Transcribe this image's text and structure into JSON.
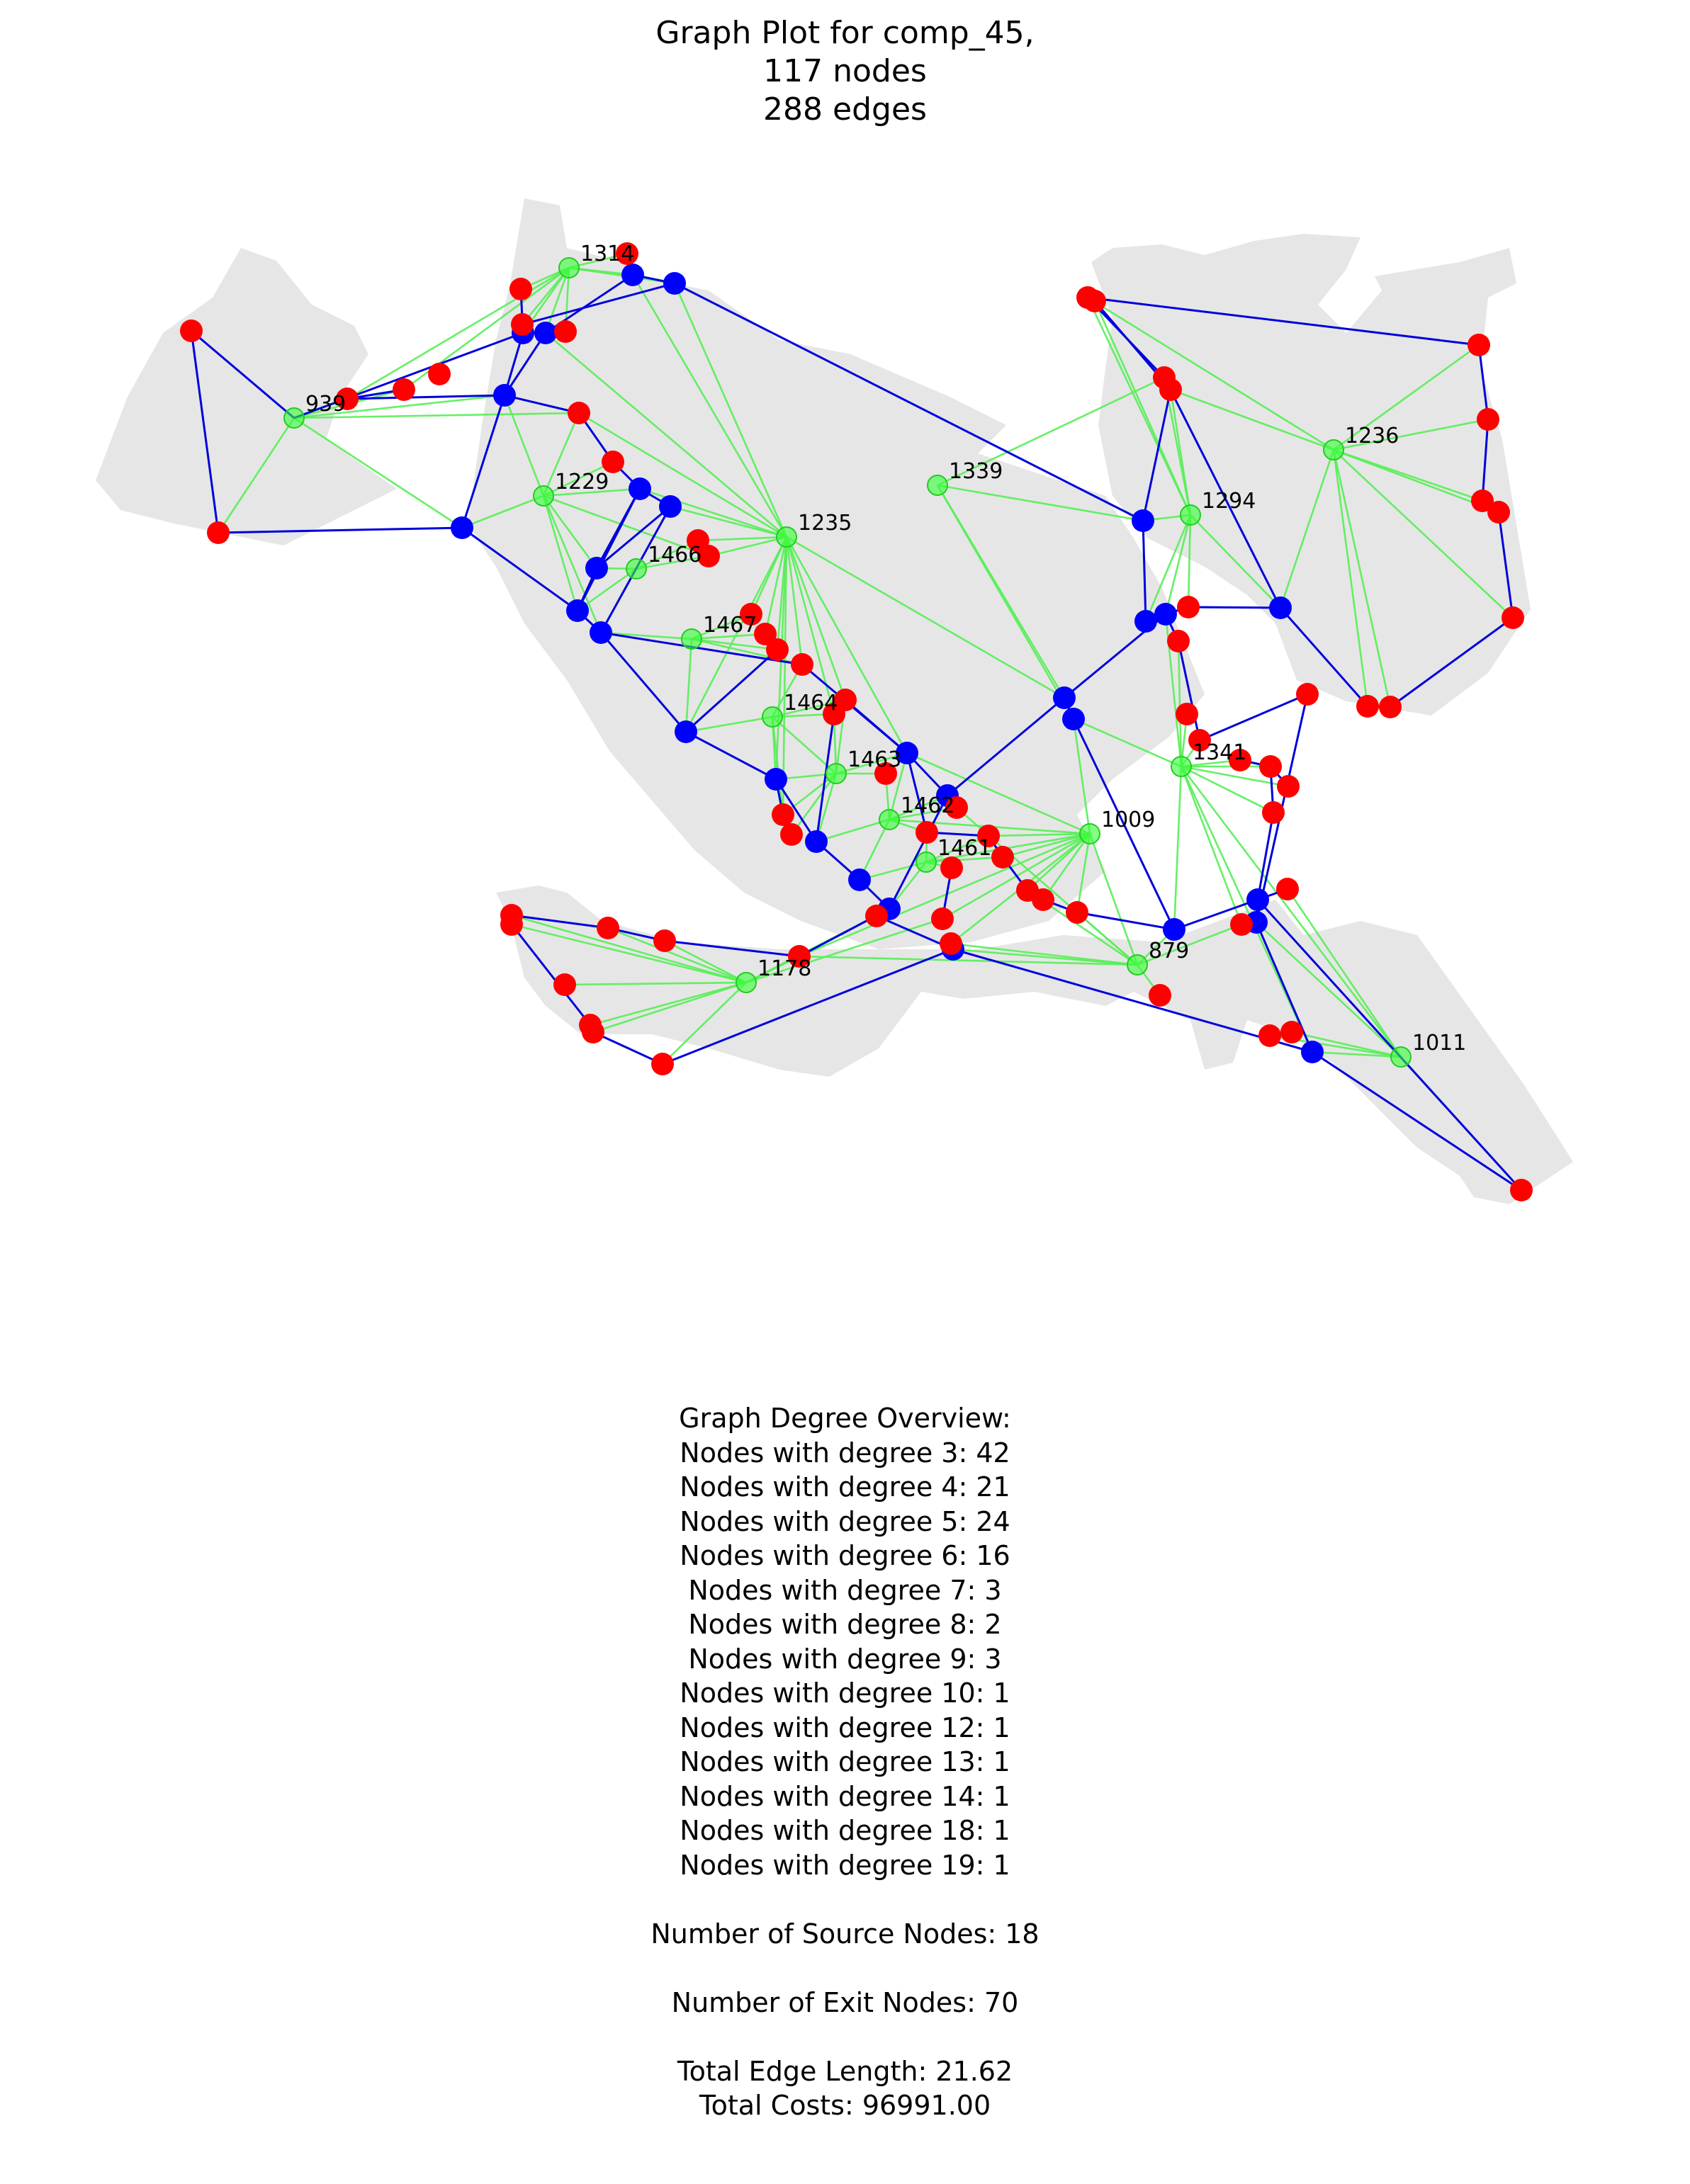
{
  "title": {
    "line1": "Graph Plot for comp_45,",
    "line2": "117 nodes",
    "line3": "288 edges"
  },
  "colors": {
    "land": "#e6e6e6",
    "source_node": "#0000ff",
    "exit_node": "#ff0000",
    "hub_node": "#33ff33",
    "pipe_edge": "#0000dd",
    "service_edge": "#55ee55"
  },
  "labeled_nodes": [
    "1314",
    "939",
    "1229",
    "1235",
    "1466",
    "1467",
    "1464",
    "1463",
    "1462",
    "1461",
    "1339",
    "1294",
    "1236",
    "1341",
    "1009",
    "879",
    "1178",
    "1011"
  ],
  "summary": {
    "heading": "Graph Degree Overview:",
    "degrees": [
      "Nodes with degree 3: 42",
      "Nodes with degree 4: 21",
      "Nodes with degree 5: 24",
      "Nodes with degree 6: 16",
      "Nodes with degree 7: 3",
      "Nodes with degree 8: 2",
      "Nodes with degree 9: 3",
      "Nodes with degree 10: 1",
      "Nodes with degree 12: 1",
      "Nodes with degree 13: 1",
      "Nodes with degree 14: 1",
      "Nodes with degree 18: 1",
      "Nodes with degree 19: 1"
    ],
    "source_nodes": "Number of Source Nodes: 18",
    "exit_nodes": "Number of Exit Nodes: 70",
    "edge_length": "Total Edge Length: 21.62",
    "costs": "Total Costs: 96991.00"
  }
}
